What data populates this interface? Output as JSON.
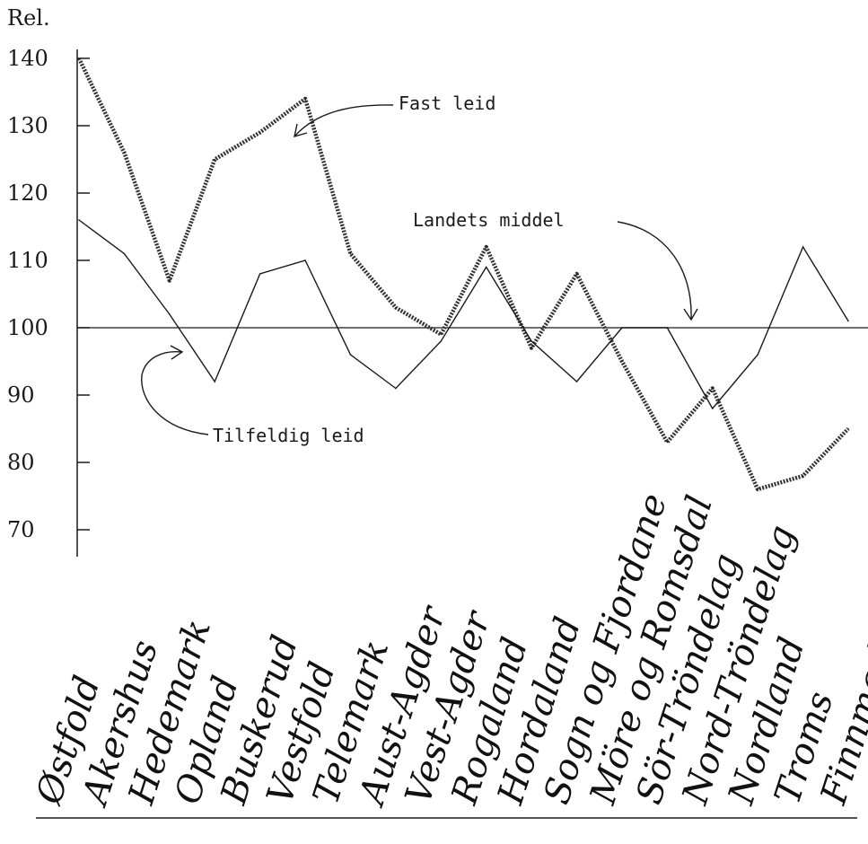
{
  "chart_data": {
    "type": "line",
    "ylabel": "Rel.",
    "ylim": [
      70,
      140
    ],
    "yticks": [
      "140",
      "130",
      "120",
      "110",
      "100",
      "90",
      "80",
      "70"
    ],
    "categories": [
      "Østfold",
      "Akershus",
      "Hedemark",
      "Opland",
      "Buskerud",
      "Vestfold",
      "Telemark",
      "Aust-Agder",
      "Vest-Agder",
      "Rogaland",
      "Hordaland",
      "Sogn og Fjordane",
      "Möre og Romsdal",
      "Sör-Tröndelag",
      "Nord-Tröndelag",
      "Nordland",
      "Troms",
      "Finnmark"
    ],
    "reference_line": {
      "value": 100
    },
    "annotations": {
      "fast": "Fast leid",
      "tilf": "Tilfeldig leid",
      "mid": "Landets middel"
    },
    "series": [
      {
        "name": "Fast leid",
        "x": [
          0,
          1,
          2,
          3,
          4,
          5,
          6,
          7,
          8,
          9,
          10,
          11,
          12,
          13,
          14,
          15,
          16,
          17
        ],
        "values": [
          140,
          126,
          107,
          125,
          129,
          134,
          111,
          103,
          99,
          112,
          97,
          108,
          95,
          83,
          91,
          76,
          78,
          85
        ]
      },
      {
        "name": "Tilfeldig leid",
        "x": [
          0,
          1,
          2,
          3,
          4,
          5,
          6,
          7,
          8,
          9,
          10,
          11,
          12,
          13,
          14,
          15,
          16,
          17
        ],
        "values": [
          116,
          111,
          102,
          92,
          108,
          110,
          96,
          91,
          98,
          109,
          98,
          92,
          100,
          100,
          88,
          96,
          112,
          101
        ]
      },
      {
        "name": "Landets middel",
        "x": [
          0,
          17
        ],
        "values": [
          100,
          100
        ]
      }
    ]
  }
}
